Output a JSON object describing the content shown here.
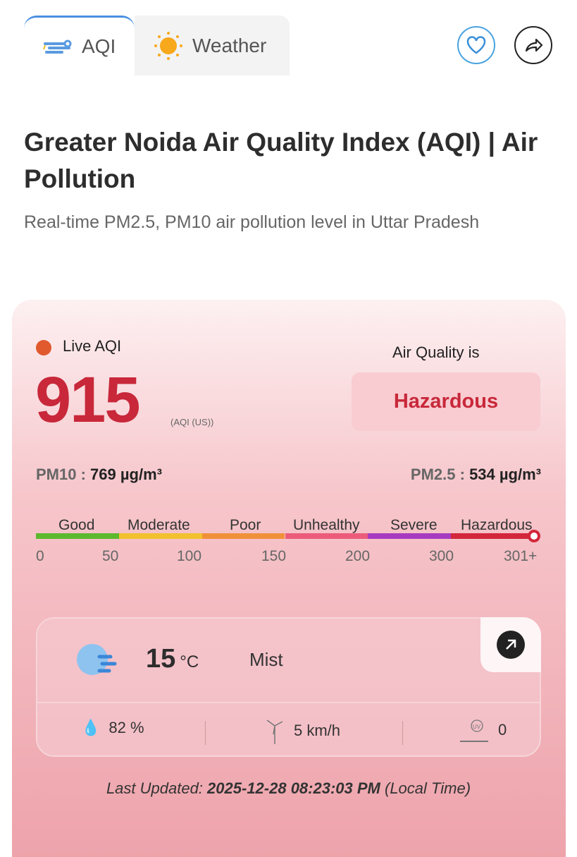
{
  "tabs": [
    {
      "label": "AQI",
      "icon": "wind-icon",
      "active": true
    },
    {
      "label": "Weather",
      "icon": "sun-icon",
      "active": false
    }
  ],
  "actions": {
    "favorite_icon": "heart-icon",
    "share_icon": "share-icon"
  },
  "title": "Greater Noida Air Quality Index (AQI) | Air Pollution",
  "subtitle": "Real-time PM2.5, PM10 air pollution level in Uttar Pradesh",
  "aqi": {
    "live_label": "Live AQI",
    "value": "915",
    "unit": "(AQI (US))",
    "quality_label": "Air Quality is",
    "quality": "Hazardous",
    "quality_color": "#c8283a"
  },
  "pollutants": {
    "pm10_label": "PM10 :",
    "pm10_value": "769 µg/m³",
    "pm25_label": "PM2.5 :",
    "pm25_value": "534 µg/m³"
  },
  "scale": {
    "labels": [
      "Good",
      "Moderate",
      "Poor",
      "Unhealthy",
      "Severe",
      "Hazardous"
    ],
    "ticks": [
      "0",
      "50",
      "100",
      "150",
      "200",
      "300",
      "301+"
    ],
    "colors": [
      "#5cb82e",
      "#f2c12e",
      "#f0913a",
      "#ec5b7a",
      "#a73bc0",
      "#d3263b"
    ]
  },
  "weather": {
    "temp": "15",
    "temp_unit": "°C",
    "condition": "Mist",
    "humidity": "82 %",
    "wind": "5 km/h",
    "uv": "0"
  },
  "last_updated": {
    "label": "Last Updated:",
    "value": "2025-12-28 08:23:03 PM",
    "suffix": "(Local Time)"
  }
}
